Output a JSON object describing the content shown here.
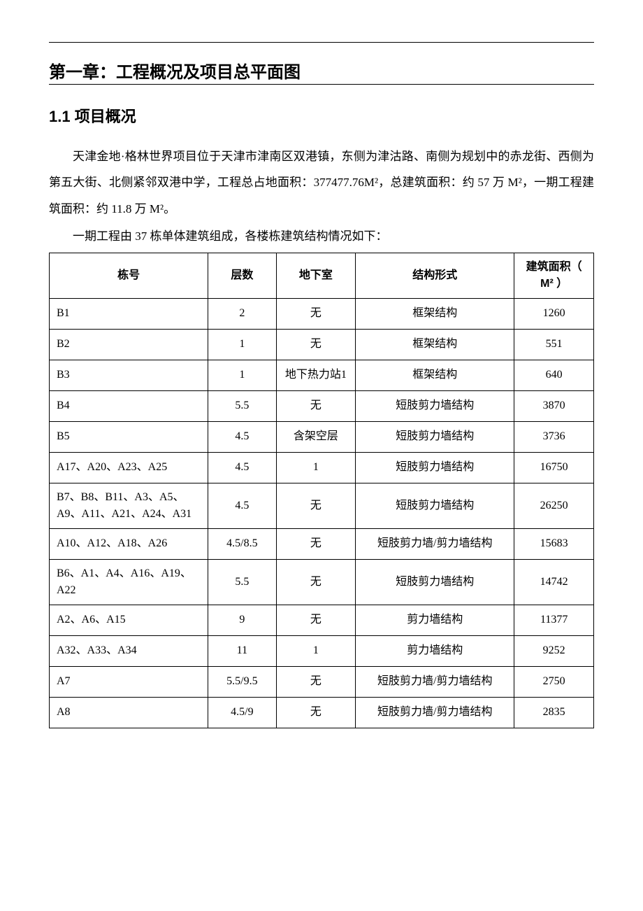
{
  "top_rule_color": "#000000",
  "chapter": {
    "title": "第一章：工程概况及项目总平面图"
  },
  "section": {
    "title": "1.1 项目概况"
  },
  "paragraphs": {
    "p1": "天津金地·格林世界项目位于天津市津南区双港镇，东侧为津沽路、南侧为规划中的赤龙街、西侧为第五大街、北侧紧邻双港中学，工程总占地面积：377477.76M²，总建筑面积：约 57 万 M²，一期工程建筑面积：约 11.8 万 M²。",
    "p2": "一期工程由 37 栋单体建筑组成，各楼栋建筑结构情况如下："
  },
  "table": {
    "headers": {
      "building_no": "栋号",
      "floors": "层数",
      "basement": "地下室",
      "structure": "结构形式",
      "area": "建筑面积（ M² ）"
    },
    "column_widths": [
      "28%",
      "12%",
      "14%",
      "28%",
      "14%"
    ],
    "border_color": "#000000",
    "rows": [
      {
        "building_no": "B1",
        "floors": "2",
        "basement": "无",
        "structure": "框架结构",
        "area": "1260"
      },
      {
        "building_no": "B2",
        "floors": "1",
        "basement": "无",
        "structure": "框架结构",
        "area": "551"
      },
      {
        "building_no": "B3",
        "floors": "1",
        "basement": "地下热力站1",
        "structure": "框架结构",
        "area": "640"
      },
      {
        "building_no": "B4",
        "floors": "5.5",
        "basement": "无",
        "structure": "短肢剪力墙结构",
        "area": "3870"
      },
      {
        "building_no": "B5",
        "floors": "4.5",
        "basement": "含架空层",
        "structure": "短肢剪力墙结构",
        "area": "3736"
      },
      {
        "building_no": "A17、A20、A23、A25",
        "floors": "4.5",
        "basement": "1",
        "structure": "短肢剪力墙结构",
        "area": "16750"
      },
      {
        "building_no": "B7、B8、B11、A3、A5、A9、A11、A21、A24、A31",
        "floors": "4.5",
        "basement": "无",
        "structure": "短肢剪力墙结构",
        "area": "26250"
      },
      {
        "building_no": "A10、A12、A18、A26",
        "floors": "4.5/8.5",
        "basement": "无",
        "structure": "短肢剪力墙/剪力墙结构",
        "area": "15683"
      },
      {
        "building_no": "B6、A1、A4、A16、A19、A22",
        "floors": "5.5",
        "basement": "无",
        "structure": "短肢剪力墙结构",
        "area": "14742"
      },
      {
        "building_no": "A2、A6、A15",
        "floors": "9",
        "basement": "无",
        "structure": "剪力墙结构",
        "area": "11377"
      },
      {
        "building_no": "A32、A33、A34",
        "floors": "11",
        "basement": "1",
        "structure": "剪力墙结构",
        "area": "9252"
      },
      {
        "building_no": "A7",
        "floors": "5.5/9.5",
        "basement": "无",
        "structure": "短肢剪力墙/剪力墙结构",
        "area": "2750"
      },
      {
        "building_no": "A8",
        "floors": "4.5/9",
        "basement": "无",
        "structure": "短肢剪力墙/剪力墙结构",
        "area": "2835"
      }
    ]
  },
  "typography": {
    "chapter_fontsize": 24,
    "section_fontsize": 22,
    "body_fontsize": 17,
    "table_fontsize": 16,
    "body_lineheight": 2.2,
    "body_font": "SimSun",
    "heading_font": "SimHei"
  },
  "colors": {
    "background": "#ffffff",
    "text": "#000000",
    "border": "#000000"
  }
}
